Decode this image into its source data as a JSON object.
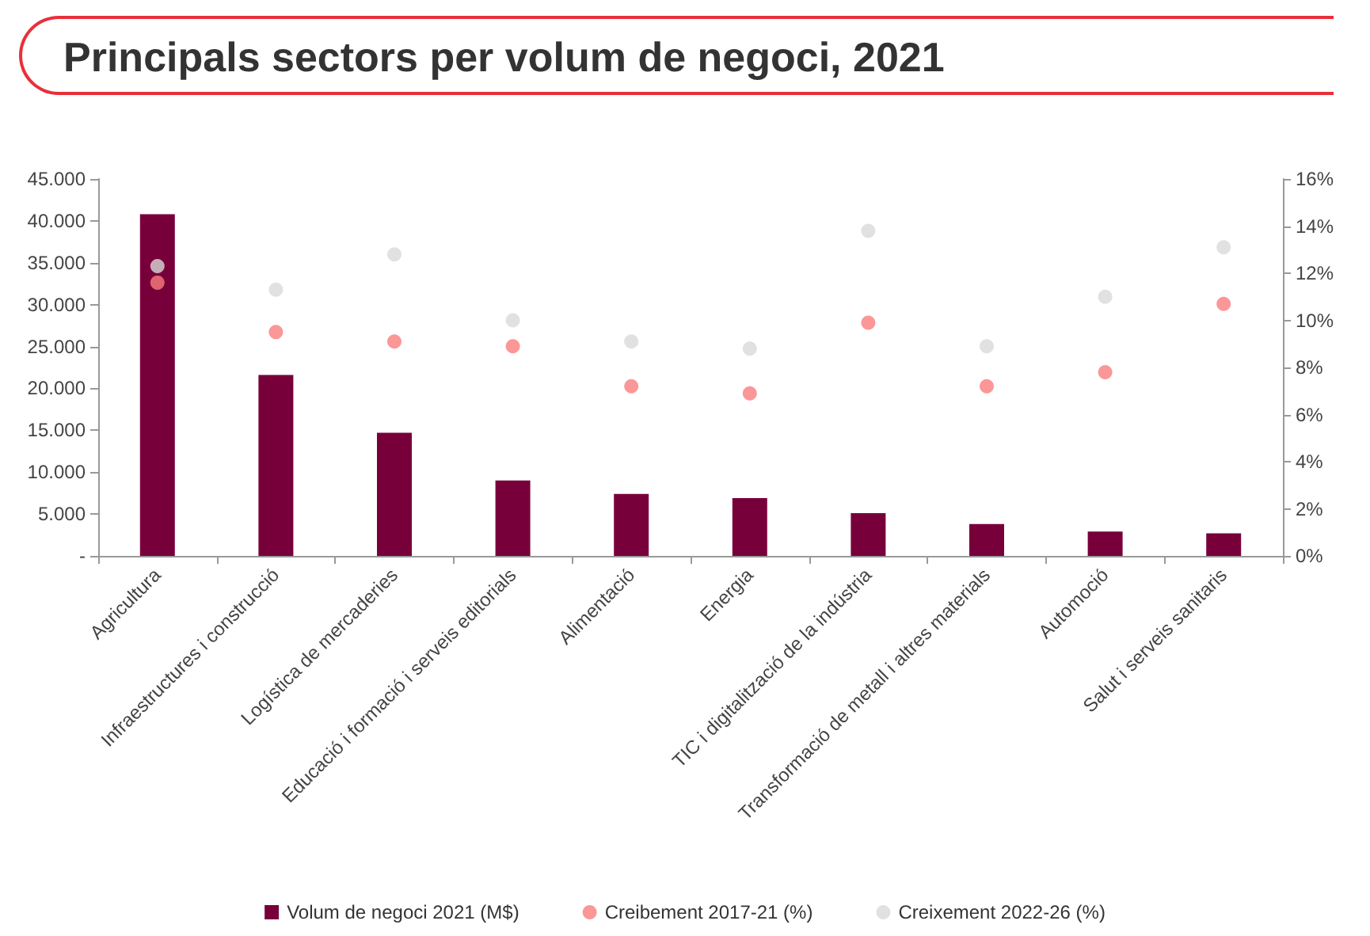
{
  "chart_data": {
    "type": "bar",
    "title": "Principals sectors per volum de negoci, 2021",
    "categories": [
      "Agricultura",
      "Infraestructures i construcció",
      "Logística de mercaderies",
      "Educació i formació i serveis editorials",
      "Alimentació",
      "Energia",
      "TIC i digitalització de la indústria",
      "Transformació de metall i altres materials",
      "Automoció",
      "Salut i serveis sanitaris"
    ],
    "series": [
      {
        "name": "Volum de negoci 2021 (M$)",
        "color": "#78003a",
        "values": [
          40800,
          21600,
          14700,
          9000,
          7400,
          6900,
          5100,
          3800,
          2900,
          2700
        ]
      },
      {
        "name": "Creibement 2017-21 (%)",
        "type": "scatter",
        "axis": "y2",
        "color": "#fa7d7d",
        "values": [
          11.6,
          9.5,
          9.1,
          8.9,
          7.2,
          6.9,
          9.9,
          7.2,
          7.8,
          10.7
        ]
      },
      {
        "name": "Creixement 2022-26 (%)",
        "type": "scatter",
        "axis": "y2",
        "color": "#d9d9d9",
        "values": [
          12.3,
          11.3,
          12.8,
          10.0,
          9.1,
          8.8,
          13.8,
          8.9,
          11.0,
          13.1
        ]
      }
    ],
    "ylim": [
      0,
      45000
    ],
    "yticks": [
      {
        "value": 0,
        "label": "-"
      },
      {
        "value": 5000,
        "label": "5.000"
      },
      {
        "value": 10000,
        "label": "10.000"
      },
      {
        "value": 15000,
        "label": "15.000"
      },
      {
        "value": 20000,
        "label": "20.000"
      },
      {
        "value": 25000,
        "label": "25.000"
      },
      {
        "value": 30000,
        "label": "30.000"
      },
      {
        "value": 35000,
        "label": "35.000"
      },
      {
        "value": 40000,
        "label": "40.000"
      },
      {
        "value": 45000,
        "label": "45.000"
      }
    ],
    "y2lim": [
      0,
      16
    ],
    "y2ticks": [
      {
        "value": 0,
        "label": "0%"
      },
      {
        "value": 2,
        "label": "2%"
      },
      {
        "value": 4,
        "label": "4%"
      },
      {
        "value": 6,
        "label": "6%"
      },
      {
        "value": 8,
        "label": "8%"
      },
      {
        "value": 10,
        "label": "10%"
      },
      {
        "value": 12,
        "label": "12%"
      },
      {
        "value": 14,
        "label": "14%"
      },
      {
        "value": 16,
        "label": "16%"
      }
    ],
    "marker": "circle",
    "grid": false,
    "legend": "bottom"
  }
}
